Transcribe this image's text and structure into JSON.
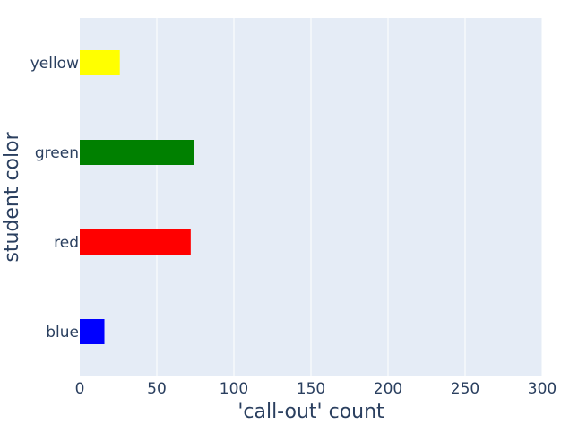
{
  "chart_data": {
    "type": "bar",
    "orientation": "horizontal",
    "categories": [
      "blue",
      "red",
      "green",
      "yellow"
    ],
    "values": [
      16,
      72,
      74,
      26
    ],
    "colors": [
      "#0000ff",
      "#ff0000",
      "#008000",
      "#ffff00"
    ],
    "xlabel": "'call-out' count",
    "ylabel": "student color",
    "xlim": [
      0,
      300
    ],
    "xticks": [
      "0",
      "50",
      "100",
      "150",
      "200",
      "250",
      "300"
    ],
    "grid": true,
    "plot_background": "#e5ecf6",
    "grid_color": "#ffffff",
    "text_color": "#2a3f5f"
  }
}
